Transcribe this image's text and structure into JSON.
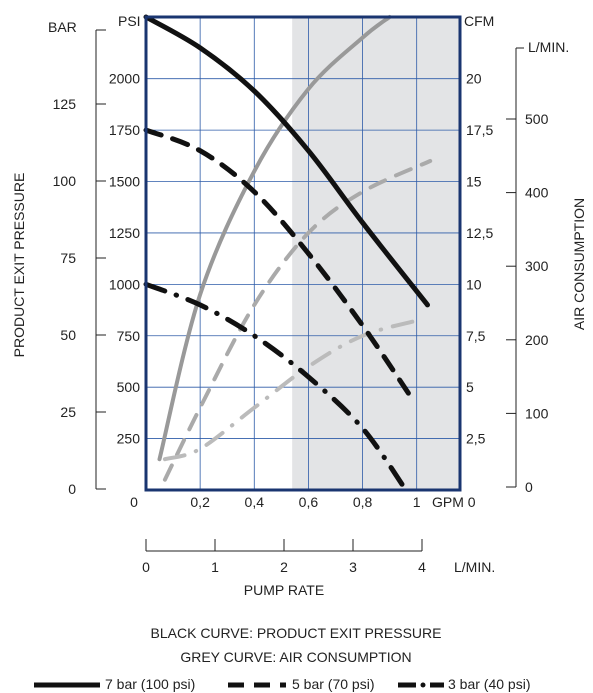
{
  "chart_data": {
    "type": "line",
    "x_axis_gpm": {
      "unit": "GPM",
      "ticks": [
        "0",
        "0,2",
        "0,4",
        "0,6",
        "0,8",
        "1"
      ],
      "tick_values": [
        0,
        0.2,
        0.4,
        0.6,
        0.8,
        1.0
      ],
      "range": [
        0,
        1.16
      ]
    },
    "x_axis_lmin": {
      "unit": "L/MIN.",
      "ticks": [
        "0",
        "1",
        "2",
        "3",
        "4"
      ],
      "tick_values": [
        0,
        1,
        2,
        3,
        4
      ],
      "title": "PUMP RATE"
    },
    "y_axis_psi": {
      "unit": "PSI",
      "ticks": [
        "250",
        "500",
        "750",
        "1000",
        "1250",
        "1500",
        "1750",
        "2000"
      ],
      "tick_values": [
        250,
        500,
        750,
        1000,
        1250,
        1500,
        1750,
        2000
      ],
      "range": [
        0,
        2300
      ]
    },
    "y_axis_bar": {
      "unit": "BAR",
      "ticks": [
        "0",
        "25",
        "50",
        "75",
        "100",
        "125"
      ],
      "tick_values": [
        0,
        25,
        50,
        75,
        100,
        125
      ],
      "title": "PRODUCT EXIT PRESSURE"
    },
    "y_axis_cfm": {
      "unit": "CFM",
      "ticks": [
        "2,5",
        "5",
        "7,5",
        "10",
        "12,5",
        "15",
        "17,5",
        "20"
      ],
      "tick_values": [
        2.5,
        5,
        7.5,
        10,
        12.5,
        15,
        17.5,
        20
      ],
      "bottom_label": "GPM 0"
    },
    "y_axis_lmin": {
      "unit": "L/MIN.",
      "ticks": [
        "0",
        "100",
        "200",
        "300",
        "400",
        "500"
      ],
      "tick_values": [
        0,
        100,
        200,
        300,
        400,
        500
      ],
      "title": "AIR CONSUMPTION"
    },
    "shaded_region": {
      "x_from": 0.54,
      "x_to": 1.16
    },
    "grid": true,
    "series": [
      {
        "legend": "7 bar (100 psi)",
        "quantity": "pressure",
        "color": "#111111",
        "style": "solid",
        "unit": "psi",
        "x": [
          0.0,
          0.2,
          0.4,
          0.6,
          0.8,
          1.04
        ],
        "y": [
          2300,
          2150,
          1940,
          1650,
          1300,
          900
        ]
      },
      {
        "legend": "5 bar (70 psi)",
        "quantity": "pressure",
        "color": "#111111",
        "style": "dashed",
        "unit": "psi",
        "x": [
          0.0,
          0.2,
          0.4,
          0.6,
          0.8,
          0.98
        ],
        "y": [
          1750,
          1650,
          1450,
          1150,
          800,
          450
        ]
      },
      {
        "legend": "3 bar (40 psi)",
        "quantity": "pressure",
        "color": "#111111",
        "style": "dashdot",
        "unit": "psi",
        "x": [
          0.0,
          0.2,
          0.4,
          0.6,
          0.8,
          0.96
        ],
        "y": [
          1000,
          900,
          750,
          550,
          300,
          0
        ]
      },
      {
        "legend": "7 bar (100 psi)",
        "quantity": "air",
        "color": "#999999",
        "style": "solid",
        "unit": "cfm",
        "x": [
          0.05,
          0.2,
          0.4,
          0.6,
          0.8,
          0.9
        ],
        "y": [
          1.5,
          9.5,
          15.5,
          19.5,
          22.0,
          23.0
        ]
      },
      {
        "legend": "5 bar (70 psi)",
        "quantity": "air",
        "color": "#aaaaaa",
        "style": "dashed",
        "unit": "cfm",
        "x": [
          0.07,
          0.2,
          0.4,
          0.6,
          0.8,
          1.05
        ],
        "y": [
          0.5,
          4.0,
          9.0,
          12.5,
          14.5,
          16.0
        ]
      },
      {
        "legend": "3 bar (40 psi)",
        "quantity": "air",
        "color": "#bbbbbb",
        "style": "dashdot",
        "unit": "cfm",
        "x": [
          0.07,
          0.2,
          0.4,
          0.6,
          0.8,
          1.02
        ],
        "y": [
          1.5,
          2.0,
          4.0,
          6.0,
          7.5,
          8.3
        ]
      }
    ],
    "captions": [
      "BLACK CURVE: PRODUCT EXIT PRESSURE",
      "GREY CURVE: AIR CONSUMPTION"
    ],
    "legend_placement": "bottom"
  }
}
